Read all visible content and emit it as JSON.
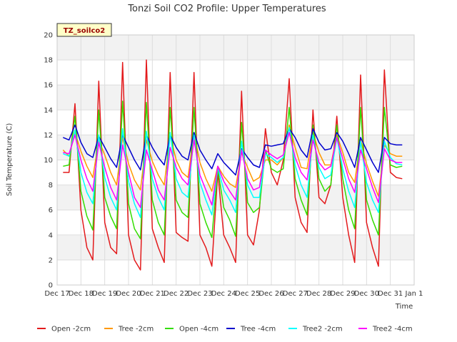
{
  "chart_data": {
    "type": "line",
    "title": "Tonzi Soil CO2 Profile: Upper Temperatures",
    "xlabel": "Time",
    "ylabel": "Soil Temperature (C)",
    "annotation": "TZ_soilco2",
    "xlim": [
      0,
      15
    ],
    "ylim": [
      0,
      20
    ],
    "x_ticks": [
      {
        "value": 0,
        "label": "Dec 17"
      },
      {
        "value": 1,
        "label": "Dec 18"
      },
      {
        "value": 2,
        "label": "Dec 19"
      },
      {
        "value": 3,
        "label": "Dec 20"
      },
      {
        "value": 4,
        "label": "Dec 21"
      },
      {
        "value": 5,
        "label": "Dec 22"
      },
      {
        "value": 6,
        "label": "Dec 23"
      },
      {
        "value": 7,
        "label": "Dec 24"
      },
      {
        "value": 8,
        "label": "Dec 25"
      },
      {
        "value": 9,
        "label": "Dec 26"
      },
      {
        "value": 10,
        "label": "Dec 27"
      },
      {
        "value": 11,
        "label": "Dec 28"
      },
      {
        "value": 12,
        "label": "Dec 29"
      },
      {
        "value": 13,
        "label": "Dec 30"
      },
      {
        "value": 14,
        "label": "Dec 31"
      },
      {
        "value": 15,
        "label": "Jan 1"
      }
    ],
    "y_ticks": [
      0,
      2,
      4,
      6,
      8,
      10,
      12,
      14,
      16,
      18,
      20
    ],
    "grid": true,
    "legend_position": "bottom",
    "x": [
      0.25,
      0.5,
      0.75,
      1.0,
      1.25,
      1.5,
      1.75,
      2.0,
      2.25,
      2.5,
      2.75,
      3.0,
      3.25,
      3.5,
      3.75,
      4.0,
      4.25,
      4.5,
      4.75,
      5.0,
      5.25,
      5.5,
      5.75,
      6.0,
      6.25,
      6.5,
      6.75,
      7.0,
      7.25,
      7.5,
      7.75,
      8.0,
      8.25,
      8.5,
      8.75,
      9.0,
      9.25,
      9.5,
      9.75,
      10.0,
      10.25,
      10.5,
      10.75,
      11.0,
      11.25,
      11.5,
      11.75,
      12.0,
      12.25,
      12.5,
      12.75,
      13.0,
      13.25,
      13.5,
      13.75,
      14.0,
      14.25,
      14.5
    ],
    "series": [
      {
        "name": "Open -2cm",
        "color": "#e31a1c",
        "values": [
          9.0,
          9.0,
          14.5,
          6.0,
          3.0,
          2.0,
          16.3,
          5.0,
          3.0,
          2.5,
          17.8,
          4.0,
          2.0,
          1.2,
          18.0,
          4.5,
          3.0,
          1.8,
          17.0,
          4.2,
          3.8,
          3.5,
          17.0,
          4.0,
          3.0,
          1.5,
          9.0,
          4.0,
          3.0,
          1.8,
          15.5,
          4.0,
          3.2,
          6.0,
          12.5,
          9.0,
          8.0,
          10.0,
          16.5,
          7.0,
          5.0,
          4.2,
          14.0,
          7.0,
          6.5,
          8.0,
          13.5,
          7.0,
          4.0,
          1.8,
          16.8,
          5.0,
          3.0,
          1.5,
          17.2,
          9.0,
          8.6,
          8.5
        ]
      },
      {
        "name": "Tree -2cm",
        "color": "#ff9900",
        "values": [
          10.8,
          10.3,
          12.2,
          10.7,
          9.5,
          8.6,
          11.6,
          10.4,
          9.0,
          8.0,
          11.8,
          9.7,
          8.4,
          7.6,
          11.6,
          9.9,
          8.8,
          8.0,
          12.0,
          10.0,
          9.0,
          8.6,
          12.2,
          9.8,
          8.5,
          7.5,
          9.5,
          8.7,
          8.1,
          7.8,
          10.6,
          9.4,
          8.3,
          8.6,
          10.0,
          10.0,
          9.6,
          10.2,
          12.8,
          11.0,
          9.4,
          9.3,
          12.2,
          10.6,
          9.6,
          9.6,
          12.0,
          10.6,
          9.0,
          8.2,
          11.6,
          9.7,
          8.3,
          7.1,
          11.2,
          10.5,
          10.3,
          10.3
        ]
      },
      {
        "name": "Open -4cm",
        "color": "#33dd00",
        "values": [
          9.5,
          9.6,
          13.5,
          7.5,
          5.5,
          4.4,
          14.0,
          7.0,
          5.5,
          4.5,
          14.7,
          6.5,
          4.5,
          3.7,
          14.6,
          6.8,
          5.0,
          4.0,
          14.2,
          6.8,
          5.8,
          5.4,
          14.2,
          6.5,
          5.0,
          3.8,
          9.3,
          6.2,
          5.2,
          3.9,
          13.0,
          6.6,
          5.8,
          6.2,
          10.8,
          9.3,
          9.0,
          9.3,
          14.2,
          8.5,
          6.8,
          5.6,
          12.8,
          8.5,
          7.5,
          8.0,
          12.8,
          8.5,
          6.0,
          4.5,
          14.2,
          6.8,
          5.2,
          4.0,
          14.2,
          9.6,
          9.4,
          9.5
        ]
      },
      {
        "name": "Tree -4cm",
        "color": "#0000cc",
        "values": [
          11.8,
          11.6,
          12.8,
          11.4,
          10.5,
          10.2,
          11.9,
          11.0,
          10.1,
          9.4,
          12.0,
          11.0,
          10.0,
          9.2,
          12.0,
          11.0,
          10.2,
          9.6,
          12.0,
          11.0,
          10.3,
          10.0,
          12.2,
          10.8,
          10.0,
          9.3,
          10.5,
          9.8,
          9.3,
          8.8,
          10.9,
          10.2,
          9.6,
          9.4,
          11.2,
          11.1,
          11.2,
          11.3,
          12.5,
          11.8,
          10.8,
          10.2,
          12.5,
          11.4,
          10.8,
          10.9,
          12.2,
          11.5,
          10.5,
          9.4,
          11.8,
          10.8,
          9.8,
          9.0,
          11.8,
          11.3,
          11.2,
          11.2
        ]
      },
      {
        "name": "Tree2 -2cm",
        "color": "#00ffff",
        "values": [
          10.5,
          10.3,
          12.4,
          9.0,
          7.4,
          6.5,
          12.0,
          8.6,
          7.0,
          6.0,
          12.5,
          8.3,
          6.5,
          5.4,
          12.3,
          8.5,
          7.0,
          6.0,
          12.2,
          8.5,
          7.4,
          7.0,
          12.0,
          8.2,
          6.8,
          5.6,
          9.4,
          7.6,
          6.8,
          5.8,
          11.5,
          8.0,
          7.0,
          7.0,
          10.5,
          10.2,
          9.8,
          10.2,
          12.6,
          9.6,
          8.0,
          7.0,
          12.0,
          9.4,
          8.5,
          8.8,
          11.8,
          9.3,
          7.5,
          6.2,
          11.5,
          8.2,
          6.8,
          5.8,
          11.5,
          10.2,
          9.7,
          9.6
        ]
      },
      {
        "name": "Tree2 -4cm",
        "color": "#ff00ff",
        "values": [
          10.6,
          10.5,
          12.0,
          10.0,
          8.5,
          7.5,
          11.4,
          9.4,
          7.8,
          6.8,
          11.2,
          9.0,
          7.0,
          6.2,
          10.8,
          9.2,
          7.6,
          6.8,
          11.0,
          9.4,
          8.5,
          8.0,
          11.6,
          8.8,
          7.6,
          6.4,
          9.5,
          8.3,
          7.5,
          6.8,
          10.8,
          8.5,
          7.6,
          7.8,
          10.8,
          10.4,
          10.1,
          10.4,
          12.2,
          10.2,
          9.0,
          8.4,
          11.6,
          9.8,
          9.2,
          9.5,
          11.8,
          10.1,
          8.5,
          7.4,
          10.8,
          9.3,
          7.8,
          6.6,
          10.9,
          10.0,
          9.8,
          9.8
        ]
      }
    ]
  }
}
